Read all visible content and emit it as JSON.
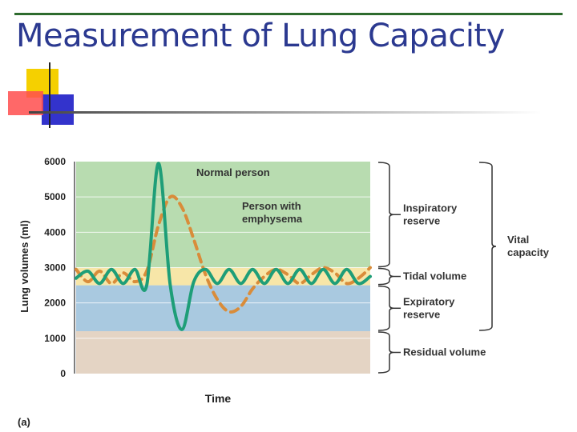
{
  "slide": {
    "title": "Measurement of Lung Capacity"
  },
  "colors": {
    "title": "#2b3990",
    "rule": "#2e6b2e",
    "inspiratory_band": "#b8dcb0",
    "tidal_band": "#f7e6a8",
    "expiratory_band": "#a9c9e0",
    "residual_band": "#e4d4c4",
    "normal_line": "#1e9e78",
    "emphysema_line": "#d98c3a"
  },
  "chart_data": {
    "type": "line",
    "title": "",
    "xlabel": "Time",
    "ylabel": "Lung volumes (ml)",
    "panel_label": "(a)",
    "ylim": [
      0,
      6000
    ],
    "yticks": [
      "0",
      "1000",
      "2000",
      "3000",
      "4000",
      "5000",
      "6000"
    ],
    "bands": [
      {
        "name": "Residual volume",
        "from": 0,
        "to": 1200
      },
      {
        "name": "Expiratory reserve",
        "from": 1200,
        "to": 2500
      },
      {
        "name": "Tidal volume",
        "from": 2500,
        "to": 3000
      },
      {
        "name": "Inspiratory reserve",
        "from": 3000,
        "to": 6000
      }
    ],
    "series": [
      {
        "name": "Normal person",
        "style": "solid",
        "x": [
          0,
          4,
          8,
          12,
          16,
          20,
          24,
          28,
          32,
          36,
          40,
          44,
          48,
          52,
          56,
          60,
          64,
          68,
          72,
          76,
          80,
          84,
          88,
          92,
          96,
          100
        ],
        "y": [
          2700,
          2900,
          2550,
          2950,
          2550,
          2950,
          2500,
          5950,
          2500,
          1250,
          2600,
          2950,
          2550,
          2950,
          2550,
          2950,
          2550,
          2950,
          2550,
          2950,
          2550,
          2950,
          2550,
          2950,
          2550,
          2750
        ]
      },
      {
        "name": "Person with emphysema",
        "style": "dashed",
        "x": [
          0,
          4,
          8,
          12,
          16,
          20,
          24,
          28,
          32,
          36,
          40,
          44,
          48,
          52,
          56,
          60,
          64,
          68,
          72,
          76,
          80,
          84,
          88,
          92,
          96,
          100
        ],
        "y": [
          2950,
          2600,
          2900,
          2550,
          2850,
          2600,
          2900,
          4200,
          5000,
          4700,
          3800,
          2800,
          2100,
          1750,
          1900,
          2400,
          2750,
          2950,
          2800,
          2550,
          2800,
          3000,
          2850,
          2550,
          2700,
          3000
        ]
      }
    ],
    "annotations": [
      {
        "text": "Normal person"
      },
      {
        "text": "Person with emphysema"
      }
    ],
    "brackets": [
      {
        "label": "Inspiratory reserve",
        "from": 3000,
        "to": 6000
      },
      {
        "label": "Tidal volume",
        "from": 2500,
        "to": 3000
      },
      {
        "label": "Expiratory reserve",
        "from": 1200,
        "to": 2500
      },
      {
        "label": "Residual volume",
        "from": 0,
        "to": 1200
      },
      {
        "label": "Vital capacity",
        "from": 1200,
        "to": 6000
      }
    ]
  }
}
